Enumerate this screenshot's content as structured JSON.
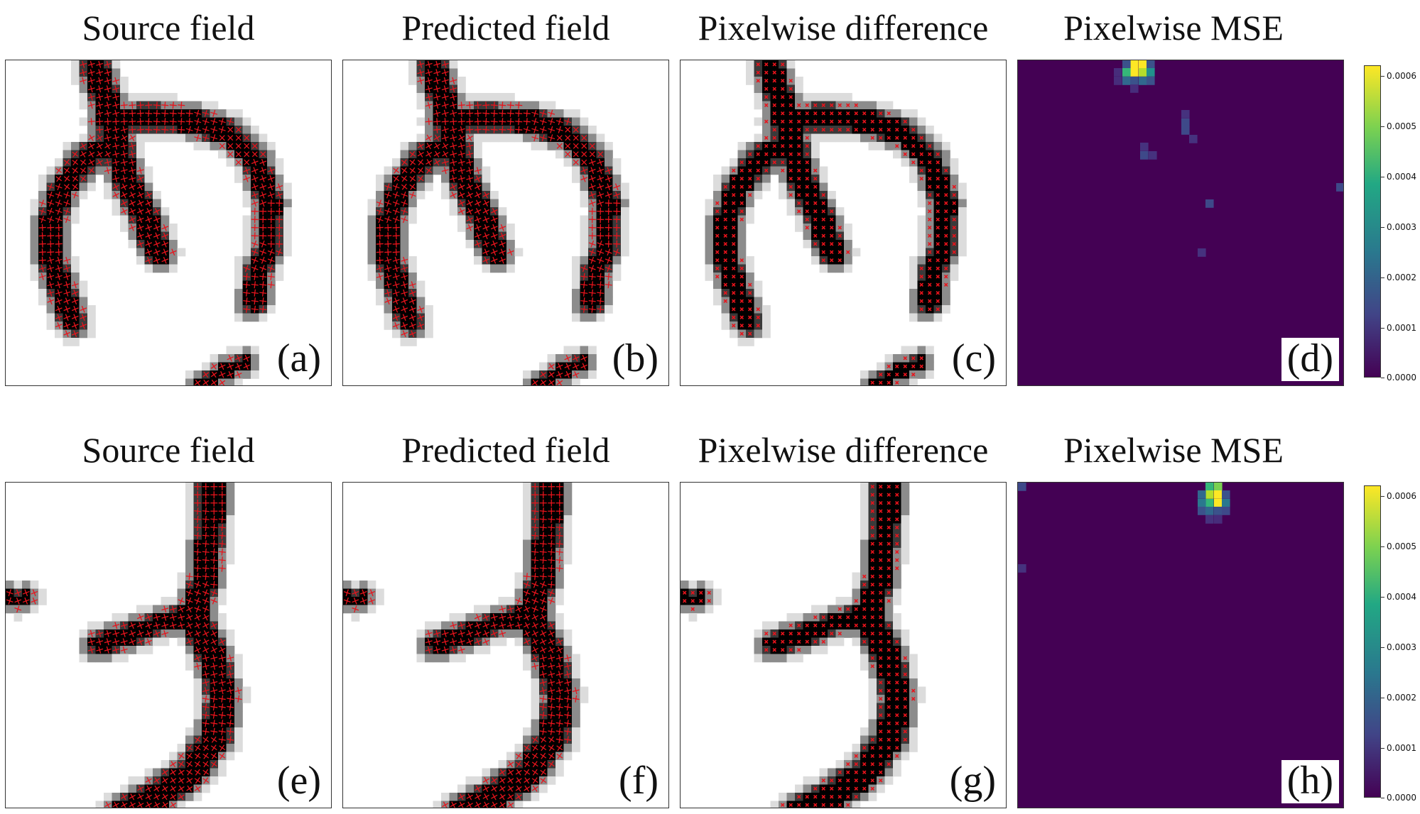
{
  "rows": [
    {
      "titles": [
        "Source field",
        "Predicted field",
        "Pixelwise difference",
        "Pixelwise MSE"
      ],
      "labels": [
        "(a)",
        "(b)",
        "(c)",
        "(d)"
      ],
      "colorbar_ticks": [
        "0.0006",
        "0.0005",
        "0.0004",
        "0.0003",
        "0.0002",
        "0.0001",
        "0.0000"
      ]
    },
    {
      "titles": [
        "Source field",
        "Predicted field",
        "Pixelwise difference",
        "Pixelwise MSE"
      ],
      "labels": [
        "(e)",
        "(f)",
        "(g)",
        "(h)"
      ],
      "colorbar_ticks": [
        "0.0006",
        "0.0005",
        "0.0004",
        "0.0003",
        "0.0002",
        "0.0001",
        "0.0000"
      ]
    }
  ],
  "colors": {
    "field": "#000000",
    "marker": "#e8141c",
    "mse_background": "#440154",
    "mse_high": "#fde725"
  }
}
